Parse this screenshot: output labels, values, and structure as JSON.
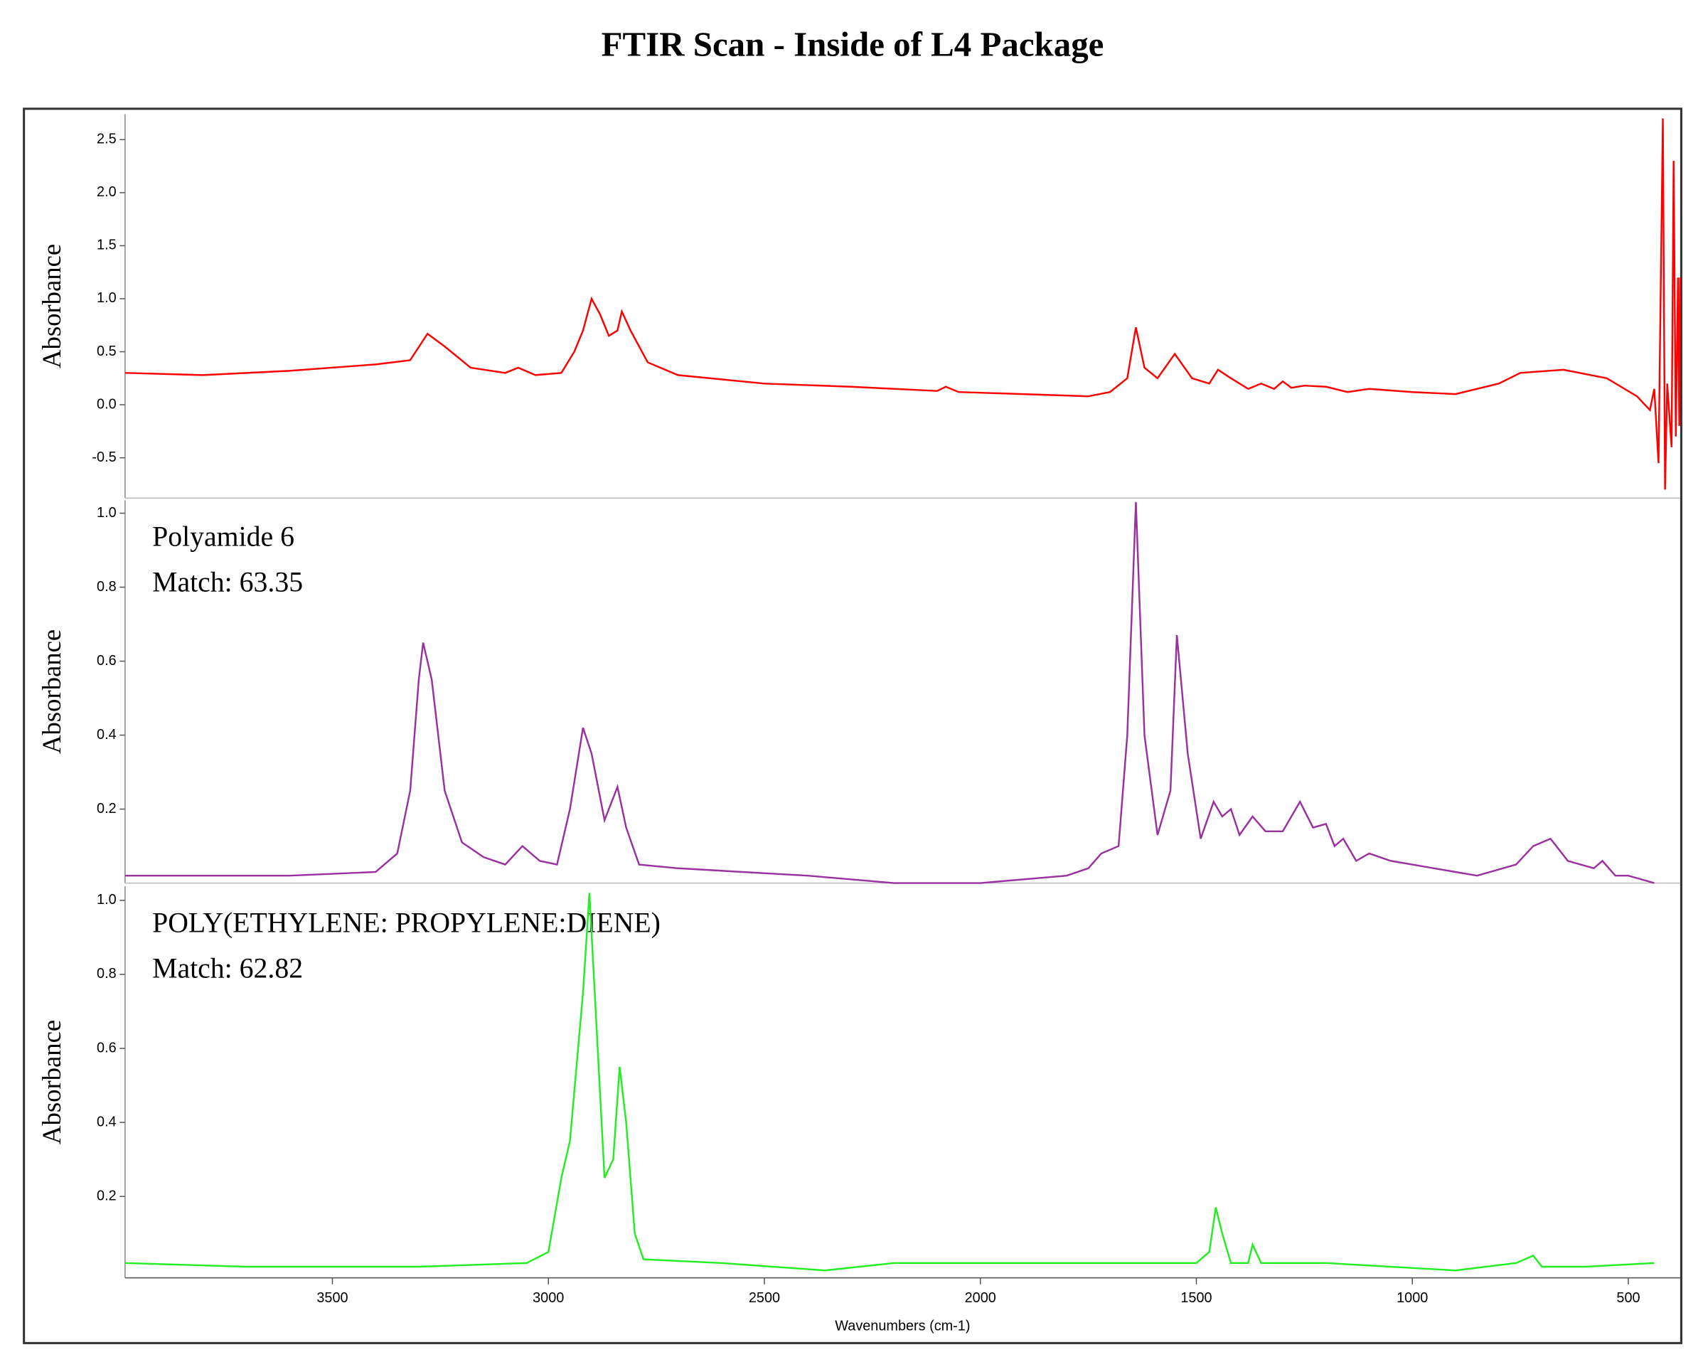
{
  "title": "FTIR Scan - Inside of L4 Package",
  "chart_data": [
    {
      "type": "line",
      "ylabel": "Absorbance",
      "xlim": [
        3980,
        380
      ],
      "ylim": [
        -0.88,
        2.74
      ],
      "yticks": [
        2.5,
        {
          "value": 2,
          "label": "2.0"
        },
        1.5,
        {
          "value": 1,
          "label": "1.0"
        },
        0.5,
        {
          "value": 0,
          "label": "0.0"
        },
        -0.5
      ],
      "x": [
        3980,
        3800,
        3600,
        3400,
        3320,
        3280,
        3240,
        3180,
        3100,
        3070,
        3030,
        2970,
        2940,
        2920,
        2900,
        2880,
        2860,
        2840,
        2830,
        2810,
        2770,
        2700,
        2500,
        2300,
        2100,
        2080,
        2050,
        1900,
        1750,
        1700,
        1660,
        1640,
        1620,
        1590,
        1550,
        1510,
        1470,
        1450,
        1420,
        1380,
        1350,
        1320,
        1300,
        1280,
        1250,
        1200,
        1150,
        1100,
        1000,
        900,
        800,
        750,
        650,
        550,
        480,
        450,
        440,
        430,
        420,
        415,
        410,
        400,
        395,
        390,
        385,
        382,
        380
      ],
      "series": [
        {
          "color": "#ff0000",
          "values": [
            0.3,
            0.28,
            0.32,
            0.38,
            0.42,
            0.67,
            0.55,
            0.35,
            0.3,
            0.35,
            0.28,
            0.3,
            0.5,
            0.7,
            1.0,
            0.85,
            0.65,
            0.7,
            0.88,
            0.7,
            0.4,
            0.28,
            0.2,
            0.17,
            0.13,
            0.17,
            0.12,
            0.1,
            0.08,
            0.12,
            0.25,
            0.73,
            0.35,
            0.25,
            0.48,
            0.25,
            0.2,
            0.33,
            0.25,
            0.15,
            0.2,
            0.15,
            0.22,
            0.16,
            0.18,
            0.17,
            0.12,
            0.15,
            0.12,
            0.1,
            0.2,
            0.3,
            0.33,
            0.25,
            0.08,
            -0.05,
            0.15,
            -0.55,
            2.7,
            -0.8,
            0.2,
            -0.4,
            2.3,
            -0.3,
            1.2,
            -0.2,
            1.2
          ]
        }
      ]
    },
    {
      "type": "line",
      "ylabel": "Absorbance",
      "annotations": [
        "Polyamide 6",
        "Match: 63.35"
      ],
      "xlim": [
        3980,
        380
      ],
      "ylim": [
        0,
        1.035
      ],
      "yticks": [
        {
          "value": 1,
          "label": "1.0"
        },
        0.8,
        0.6,
        0.4,
        0.2
      ],
      "x": [
        3980,
        3600,
        3400,
        3350,
        3320,
        3300,
        3290,
        3270,
        3240,
        3200,
        3150,
        3100,
        3060,
        3020,
        2980,
        2950,
        2920,
        2900,
        2870,
        2840,
        2820,
        2790,
        2700,
        2400,
        2200,
        2000,
        1800,
        1750,
        1720,
        1680,
        1660,
        1640,
        1620,
        1590,
        1560,
        1545,
        1520,
        1490,
        1460,
        1440,
        1420,
        1400,
        1370,
        1340,
        1300,
        1260,
        1230,
        1200,
        1180,
        1160,
        1130,
        1100,
        1050,
        1000,
        950,
        900,
        850,
        760,
        720,
        680,
        640,
        580,
        560,
        530,
        500,
        470,
        440
      ],
      "series": [
        {
          "color": "#9b30a0",
          "values": [
            0.02,
            0.02,
            0.03,
            0.08,
            0.25,
            0.55,
            0.65,
            0.55,
            0.25,
            0.11,
            0.07,
            0.05,
            0.1,
            0.06,
            0.05,
            0.2,
            0.42,
            0.35,
            0.17,
            0.26,
            0.15,
            0.05,
            0.04,
            0.02,
            0.0,
            0.0,
            0.02,
            0.04,
            0.08,
            0.1,
            0.4,
            1.03,
            0.4,
            0.13,
            0.25,
            0.67,
            0.35,
            0.12,
            0.22,
            0.18,
            0.2,
            0.13,
            0.18,
            0.14,
            0.14,
            0.22,
            0.15,
            0.16,
            0.1,
            0.12,
            0.06,
            0.08,
            0.06,
            0.05,
            0.04,
            0.03,
            0.02,
            0.05,
            0.1,
            0.12,
            0.06,
            0.04,
            0.06,
            0.02,
            0.02,
            0.01,
            0.0
          ]
        }
      ]
    },
    {
      "type": "line",
      "ylabel": "Absorbance",
      "xlabel": "Wavenumbers (cm-1)",
      "annotations": [
        "POLY(ETHYLENE: PROPYLENE:DIENE)",
        "Match: 62.82"
      ],
      "xlim": [
        3980,
        380
      ],
      "ylim": [
        -0.02,
        1.038
      ],
      "yticks": [
        {
          "value": 1,
          "label": "1.0"
        },
        0.8,
        0.6,
        0.4,
        0.2
      ],
      "xticks": [
        3500,
        3000,
        2500,
        2000,
        1500,
        1000,
        500
      ],
      "x": [
        3980,
        3700,
        3300,
        3050,
        3000,
        2970,
        2950,
        2920,
        2905,
        2895,
        2870,
        2850,
        2835,
        2820,
        2800,
        2780,
        2600,
        2360,
        2200,
        1800,
        1500,
        1470,
        1455,
        1440,
        1420,
        1380,
        1370,
        1350,
        1200,
        900,
        760,
        720,
        700,
        600,
        440
      ],
      "series": [
        {
          "color": "#22ee22",
          "values": [
            0.02,
            0.01,
            0.01,
            0.02,
            0.05,
            0.25,
            0.35,
            0.75,
            1.02,
            0.8,
            0.25,
            0.3,
            0.55,
            0.4,
            0.1,
            0.03,
            0.02,
            0.0,
            0.02,
            0.02,
            0.02,
            0.05,
            0.17,
            0.1,
            0.02,
            0.02,
            0.07,
            0.02,
            0.02,
            0.0,
            0.02,
            0.04,
            0.01,
            0.01,
            0.02
          ]
        }
      ]
    }
  ]
}
